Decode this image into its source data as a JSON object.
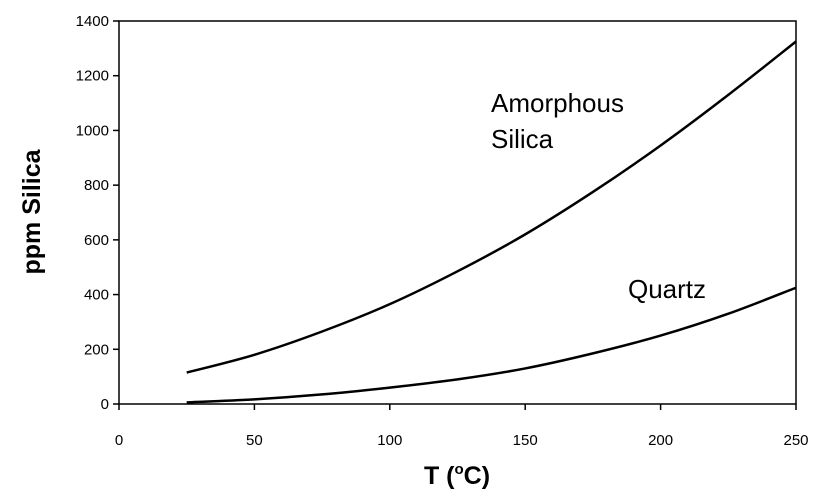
{
  "chart_data": {
    "type": "line",
    "title": "",
    "xlabel": "T (oC)",
    "ylabel": "ppm Silica",
    "xlim": [
      0,
      250
    ],
    "ylim": [
      0,
      1400
    ],
    "xticks": [
      0,
      50,
      100,
      150,
      200,
      250
    ],
    "yticks": [
      0,
      200,
      400,
      600,
      800,
      1000,
      1200,
      1400
    ],
    "grid": false,
    "legend": "none",
    "line_color": "#000000",
    "annotations": {
      "amorphous": [
        "Amorphous",
        "Silica"
      ],
      "quartz": "Quartz"
    },
    "series": [
      {
        "label": "Amorphous Silica",
        "x": [
          25,
          50,
          75,
          100,
          125,
          150,
          175,
          200,
          225,
          250
        ],
        "y": [
          115,
          180,
          265,
          365,
          485,
          620,
          775,
          945,
          1130,
          1325
        ]
      },
      {
        "label": "Quartz",
        "x": [
          25,
          50,
          75,
          100,
          125,
          150,
          175,
          200,
          225,
          250
        ],
        "y": [
          6,
          17,
          35,
          60,
          90,
          130,
          185,
          250,
          330,
          425
        ]
      }
    ]
  }
}
